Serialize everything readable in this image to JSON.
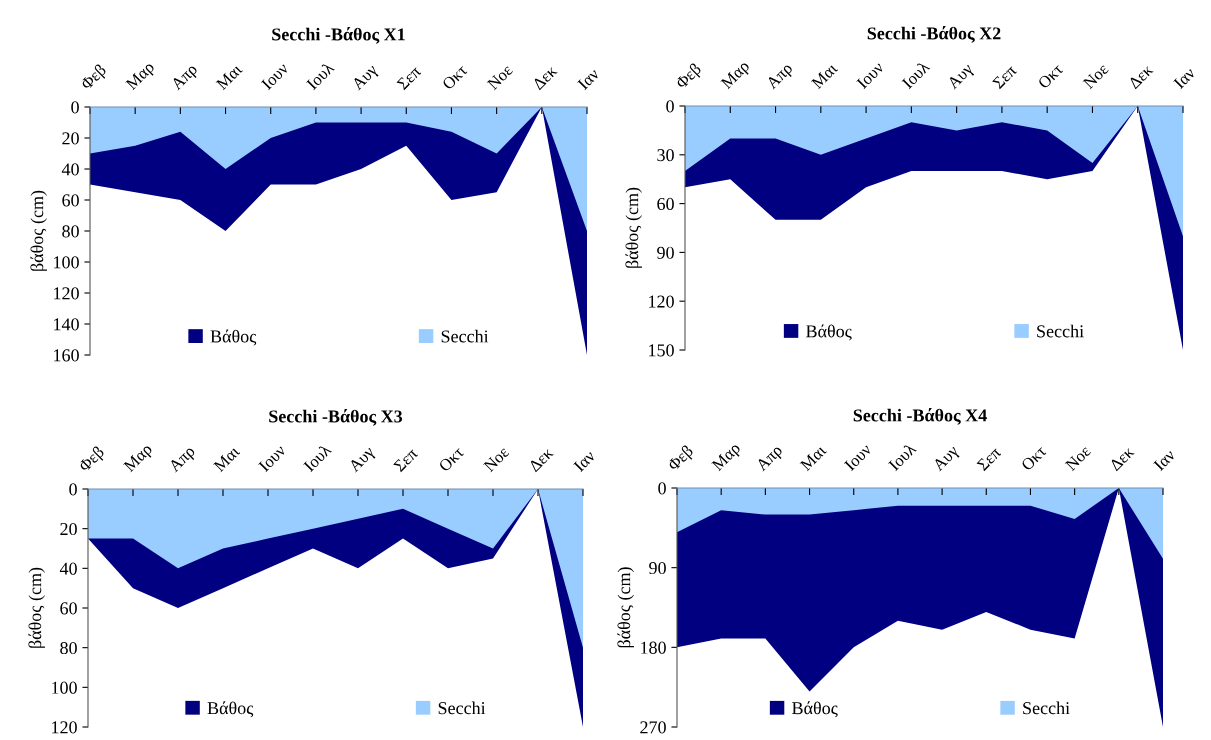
{
  "chart_data": [
    {
      "type": "area",
      "title": "Secchi -Βάθος X1",
      "ylabel": "βάθος (cm)",
      "categories": [
        "Φεβ",
        "Μαρ",
        "Απρ",
        "Μαι",
        "Ιουν",
        "Ιουλ",
        "Αυγ",
        "Σεπ",
        "Οκτ",
        "Νοε",
        "Δεκ",
        "Ιαν"
      ],
      "ylim": [
        160,
        0
      ],
      "yticks": [
        0,
        20,
        40,
        60,
        80,
        100,
        120,
        140,
        160
      ],
      "legend": "bottom",
      "grid": false,
      "series": [
        {
          "name": "Βάθος",
          "color": "#000080",
          "values": [
            50,
            55,
            60,
            80,
            50,
            50,
            40,
            25,
            60,
            55,
            0,
            160
          ]
        },
        {
          "name": "Secchi",
          "color": "#99ccff",
          "values": [
            30,
            25,
            16,
            40,
            20,
            10,
            10,
            10,
            16,
            30,
            0,
            80
          ]
        }
      ]
    },
    {
      "type": "area",
      "title": "Secchi -Βάθος X2",
      "ylabel": "βάθος (cm)",
      "categories": [
        "Φεβ",
        "Μαρ",
        "Απρ",
        "Μαι",
        "Ιουν",
        "Ιουλ",
        "Αυγ",
        "Σεπ",
        "Οκτ",
        "Νοε",
        "Δεκ",
        "Ιαν"
      ],
      "ylim": [
        150,
        0
      ],
      "yticks": [
        0,
        30,
        60,
        90,
        120,
        150
      ],
      "legend": "bottom",
      "grid": false,
      "series": [
        {
          "name": "Βάθος",
          "color": "#000080",
          "values": [
            50,
            45,
            70,
            70,
            50,
            40,
            40,
            40,
            45,
            40,
            0,
            150
          ]
        },
        {
          "name": "Secchi",
          "color": "#99ccff",
          "values": [
            40,
            20,
            20,
            30,
            20,
            10,
            15,
            10,
            15,
            35,
            0,
            80
          ]
        }
      ]
    },
    {
      "type": "area",
      "title": "Secchi -Βάθος X3",
      "ylabel": "βάθος (cm)",
      "categories": [
        "Φεβ",
        "Μαρ",
        "Απρ",
        "Μαι",
        "Ιουν",
        "Ιουλ",
        "Αυγ",
        "Σεπ",
        "Οκτ",
        "Νοε",
        "Δεκ",
        "Ιαν"
      ],
      "ylim": [
        120,
        0
      ],
      "yticks": [
        0,
        20,
        40,
        60,
        80,
        100,
        120
      ],
      "legend": "bottom",
      "grid": false,
      "series": [
        {
          "name": "Βάθος",
          "color": "#000080",
          "values": [
            25,
            50,
            60,
            50,
            40,
            30,
            40,
            25,
            40,
            35,
            0,
            120
          ]
        },
        {
          "name": "Secchi",
          "color": "#99ccff",
          "values": [
            25,
            25,
            40,
            30,
            25,
            20,
            15,
            10,
            20,
            30,
            0,
            80
          ]
        }
      ]
    },
    {
      "type": "area",
      "title": "Secchi -Βάθος X4",
      "ylabel": "βάθος (cm)",
      "categories": [
        "Φεβ",
        "Μαρ",
        "Απρ",
        "Μαι",
        "Ιουν",
        "Ιουλ",
        "Αυγ",
        "Σεπ",
        "Οκτ",
        "Νοε",
        "Δεκ",
        "Ιαν"
      ],
      "ylim": [
        270,
        0
      ],
      "yticks": [
        0,
        90,
        180,
        270
      ],
      "legend": "bottom",
      "grid": false,
      "series": [
        {
          "name": "Βάθος",
          "color": "#000080",
          "values": [
            180,
            170,
            170,
            230,
            180,
            150,
            160,
            140,
            160,
            170,
            0,
            270
          ]
        },
        {
          "name": "Secchi",
          "color": "#99ccff",
          "values": [
            50,
            25,
            30,
            30,
            25,
            20,
            20,
            20,
            20,
            35,
            0,
            80
          ]
        }
      ]
    }
  ]
}
